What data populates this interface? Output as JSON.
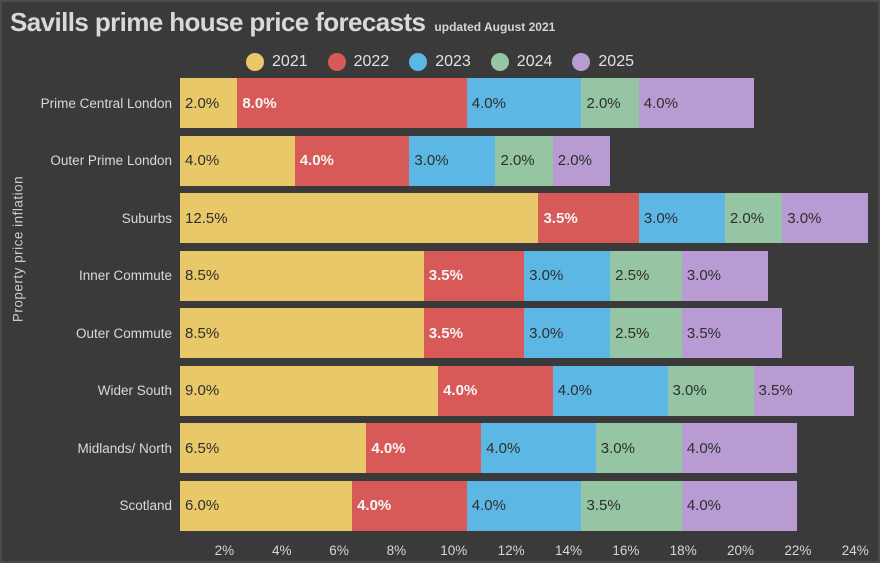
{
  "title": "Savills prime house price forecasts",
  "subtitle": "updated August 2021",
  "ylabel": "Property price inflation",
  "colors": {
    "background": "#3a3a3a",
    "border": "#4b4b4b",
    "text": "#d9d9d9",
    "dark_label": "#2e2e2e",
    "light_label": "#f5f5f5"
  },
  "chart_data": {
    "type": "bar",
    "orientation": "horizontal",
    "stacked": true,
    "title": "Savills prime house price forecasts",
    "subtitle": "updated August 2021",
    "ylabel": "Property price inflation",
    "legend_position": "top",
    "grid": false,
    "value_suffix": "%",
    "xlim": [
      0,
      24.2
    ],
    "categories": [
      "Prime Central London",
      "Outer Prime London",
      "Suburbs",
      "Inner Commute",
      "Outer Commute",
      "Wider South",
      "Midlands/ North",
      "Scotland"
    ],
    "series": [
      {
        "name": "2021",
        "color": "#e9c869",
        "label_color": "#2e2e2e",
        "label_bold": false,
        "values": [
          2.0,
          4.0,
          12.5,
          8.5,
          8.5,
          9.0,
          6.5,
          6.0
        ]
      },
      {
        "name": "2022",
        "color": "#d85a58",
        "label_color": "#f5f5f5",
        "label_bold": true,
        "values": [
          8.0,
          4.0,
          3.5,
          3.5,
          3.5,
          4.0,
          4.0,
          4.0
        ]
      },
      {
        "name": "2023",
        "color": "#5cb7e5",
        "label_color": "#2e2e2e",
        "label_bold": false,
        "values": [
          4.0,
          3.0,
          3.0,
          3.0,
          3.0,
          4.0,
          4.0,
          4.0
        ]
      },
      {
        "name": "2024",
        "color": "#95c5a3",
        "label_color": "#2e2e2e",
        "label_bold": false,
        "values": [
          2.0,
          2.0,
          2.0,
          2.5,
          2.5,
          3.0,
          3.0,
          3.5
        ]
      },
      {
        "name": "2025",
        "color": "#b79bd2",
        "label_color": "#2e2e2e",
        "label_bold": false,
        "values": [
          4.0,
          2.0,
          3.0,
          3.0,
          3.5,
          3.5,
          4.0,
          4.0
        ]
      }
    ],
    "x_ticks": [
      {
        "label": "2%",
        "value": 2
      },
      {
        "label": "4%",
        "value": 4
      },
      {
        "label": "6%",
        "value": 6
      },
      {
        "label": "8%",
        "value": 8
      },
      {
        "label": "10%",
        "value": 10
      },
      {
        "label": "12%",
        "value": 12
      },
      {
        "label": "14%",
        "value": 14
      },
      {
        "label": "16%",
        "value": 16
      },
      {
        "label": "18%",
        "value": 18
      },
      {
        "label": "20%",
        "value": 20
      },
      {
        "label": "22%",
        "value": 22
      },
      {
        "label": "24%",
        "value": 24
      }
    ]
  }
}
